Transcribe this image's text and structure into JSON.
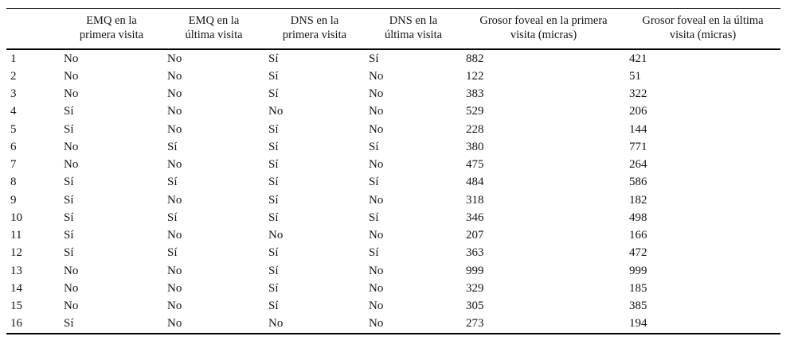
{
  "page": {
    "background_color": "#ffffff",
    "text_color": "#141414",
    "rule_color": "#000000"
  },
  "table": {
    "columns": [
      {
        "id": "row-number",
        "line1": "",
        "line2": ""
      },
      {
        "id": "emq-primera-visita",
        "line1": "EMQ en la",
        "line2": "primera visita"
      },
      {
        "id": "emq-ultima-visita",
        "line1": "EMQ en la",
        "line2": "última visita"
      },
      {
        "id": "dns-primera-visita",
        "line1": "DNS en la",
        "line2": "primera visita"
      },
      {
        "id": "dns-ultima-visita",
        "line1": "DNS en la",
        "line2": "última visita"
      },
      {
        "id": "grosor-primera-visita",
        "line1": "Grosor foveal en la primera",
        "line2": "visita (micras)"
      },
      {
        "id": "grosor-ultima-visita",
        "line1": "Grosor foveal en la última",
        "line2": "visita (micras)"
      }
    ],
    "rows": [
      [
        "1",
        "No",
        "No",
        "Sí",
        "Sí",
        "882",
        "421"
      ],
      [
        "2",
        "No",
        "No",
        "Sí",
        "No",
        "122",
        "51"
      ],
      [
        "3",
        "No",
        "No",
        "Sí",
        "No",
        "383",
        "322"
      ],
      [
        "4",
        "Sí",
        "No",
        "No",
        "No",
        "529",
        "206"
      ],
      [
        "5",
        "Sí",
        "No",
        "Sí",
        "No",
        "228",
        "144"
      ],
      [
        "6",
        "No",
        "Sí",
        "Sí",
        "Sí",
        "380",
        "771"
      ],
      [
        "7",
        "No",
        "No",
        "Sí",
        "No",
        "475",
        "264"
      ],
      [
        "8",
        "Sí",
        "Sí",
        "Sí",
        "Sí",
        "484",
        "586"
      ],
      [
        "9",
        "Sí",
        "No",
        "Sí",
        "No",
        "318",
        "182"
      ],
      [
        "10",
        "Sí",
        "Sí",
        "Sí",
        "Sí",
        "346",
        "498"
      ],
      [
        "11",
        "Sí",
        "No",
        "No",
        "No",
        "207",
        "166"
      ],
      [
        "12",
        "Sí",
        "Sí",
        "Sí",
        "Sí",
        "363",
        "472"
      ],
      [
        "13",
        "No",
        "No",
        "Sí",
        "No",
        "999",
        "999"
      ],
      [
        "14",
        "No",
        "No",
        "Sí",
        "No",
        "329",
        "185"
      ],
      [
        "15",
        "No",
        "No",
        "Sí",
        "No",
        "305",
        "385"
      ],
      [
        "16",
        "Sí",
        "No",
        "No",
        "No",
        "273",
        "194"
      ]
    ]
  }
}
